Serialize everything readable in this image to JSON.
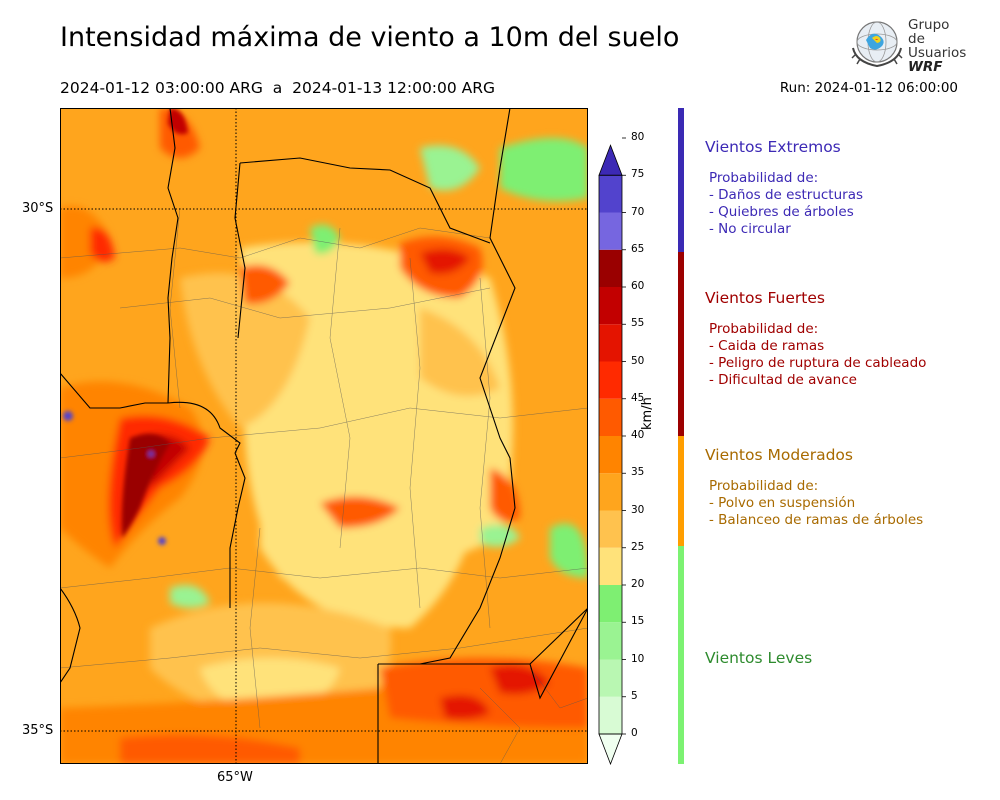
{
  "title": "Intensidad máxima de viento a 10m del suelo",
  "period": "2024-01-12 03:00:00 ARG  a  2024-01-13 12:00:00 ARG",
  "run": "Run: 2024-01-12 06:00:00",
  "logo": {
    "line1": "Grupo de",
    "line2": "Usuarios",
    "line3": "WRF"
  },
  "map": {
    "lat_labels": [
      "30°S",
      "35°S"
    ],
    "lon_labels": [
      "65°W"
    ]
  },
  "colorbar": {
    "unit": "km/h",
    "ticks": [
      "0",
      "5",
      "10",
      "15",
      "20",
      "25",
      "30",
      "35",
      "40",
      "45",
      "50",
      "55",
      "60",
      "65",
      "70",
      "75",
      "80"
    ],
    "colors": [
      "#f0fff0",
      "#d8fbd4",
      "#b9f7b2",
      "#9af392",
      "#7eef72",
      "#ffe27a",
      "#ffc24e",
      "#ffa51d",
      "#ff8400",
      "#ff5a00",
      "#ff2a00",
      "#e41400",
      "#c20000",
      "#9a0000",
      "#7666e0",
      "#5243cd",
      "#3c29b5"
    ]
  },
  "categories": [
    {
      "title": "Vientos Extremos",
      "color": "#3c29b5",
      "bar_color": "#3a2ab4",
      "body": "Probabilidad de:\n- Daños de estructuras\n- Quiebres de árboles\n- No circular"
    },
    {
      "title": "Vientos Fuertes",
      "color": "#a00000",
      "bar_color": "#9c0000",
      "body": "Probabilidad de:\n- Caida de ramas\n- Peligro de ruptura de cableado\n- Dificultad de avance"
    },
    {
      "title": "Vientos Moderados",
      "color": "#a86a00",
      "bar_color": "#ff9e00",
      "body": "Probabilidad de:\n- Polvo en suspensión\n- Balanceo de ramas de árboles"
    },
    {
      "title": "Vientos Leves",
      "color": "#2e8b2e",
      "bar_color": "#7cf272",
      "body": ""
    }
  ]
}
